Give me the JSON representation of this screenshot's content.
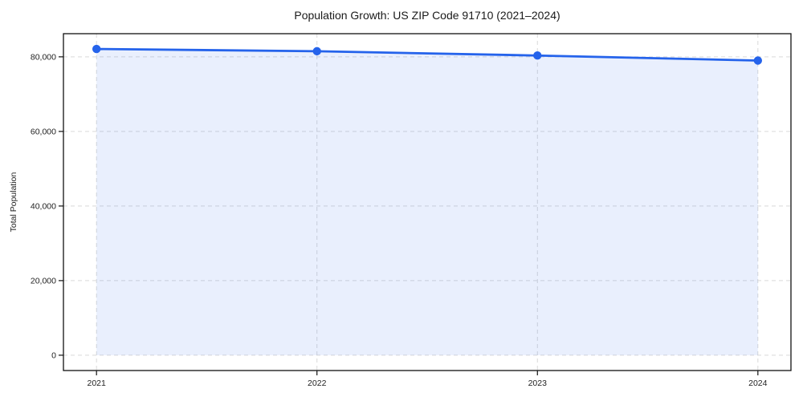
{
  "chart_data": {
    "type": "area",
    "title": "Population Growth: US ZIP Code 91710 (2021–2024)",
    "xlabel": "",
    "ylabel": "Total Population",
    "categories": [
      "2021",
      "2022",
      "2023",
      "2024"
    ],
    "series": [
      {
        "name": "Total Population",
        "values": [
          82100,
          81500,
          80350,
          79000
        ]
      }
    ],
    "yticks": [
      0,
      20000,
      40000,
      60000,
      80000
    ],
    "ytick_labels": [
      "0",
      "20,000",
      "40,000",
      "60,000",
      "80,000"
    ],
    "ylim": [
      -4105,
      86205
    ],
    "xlim": [
      -0.15,
      3.15
    ],
    "grid": true,
    "legend": false,
    "colors": {
      "line": "#2563eb",
      "marker": "#2563eb",
      "fill": "rgba(37,99,235,0.10)",
      "grid": "#d9d9d9",
      "spine": "#111111",
      "text": "#222222",
      "background": "#ffffff"
    }
  }
}
